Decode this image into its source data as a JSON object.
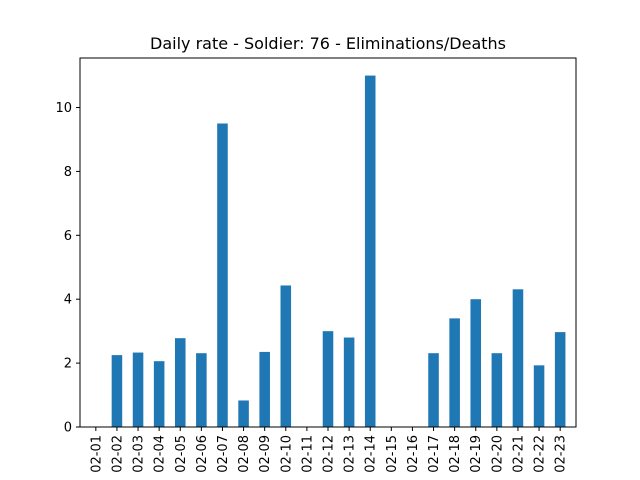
{
  "chart_data": {
    "type": "bar",
    "title": "Daily rate - Soldier: 76 - Eliminations/Deaths",
    "xlabel": "",
    "ylabel": "",
    "categories": [
      "02-01",
      "02-02",
      "02-03",
      "02-04",
      "02-05",
      "02-06",
      "02-07",
      "02-08",
      "02-09",
      "02-10",
      "02-11",
      "02-12",
      "02-13",
      "02-14",
      "02-15",
      "02-16",
      "02-17",
      "02-18",
      "02-19",
      "02-20",
      "02-21",
      "02-22",
      "02-23"
    ],
    "values": [
      0,
      2.25,
      2.33,
      2.06,
      2.78,
      2.31,
      9.5,
      0.83,
      2.35,
      4.43,
      0,
      3.0,
      2.8,
      11.0,
      0,
      0,
      2.31,
      3.4,
      4.0,
      2.31,
      4.31,
      1.93,
      2.97
    ],
    "ylim": [
      0,
      11.55
    ],
    "yticks": [
      0,
      2,
      4,
      6,
      8,
      10
    ],
    "ytick_labels": [
      "0",
      "2",
      "4",
      "6",
      "8",
      "10"
    ],
    "bar_color": "#1f77b4",
    "grid": false
  }
}
